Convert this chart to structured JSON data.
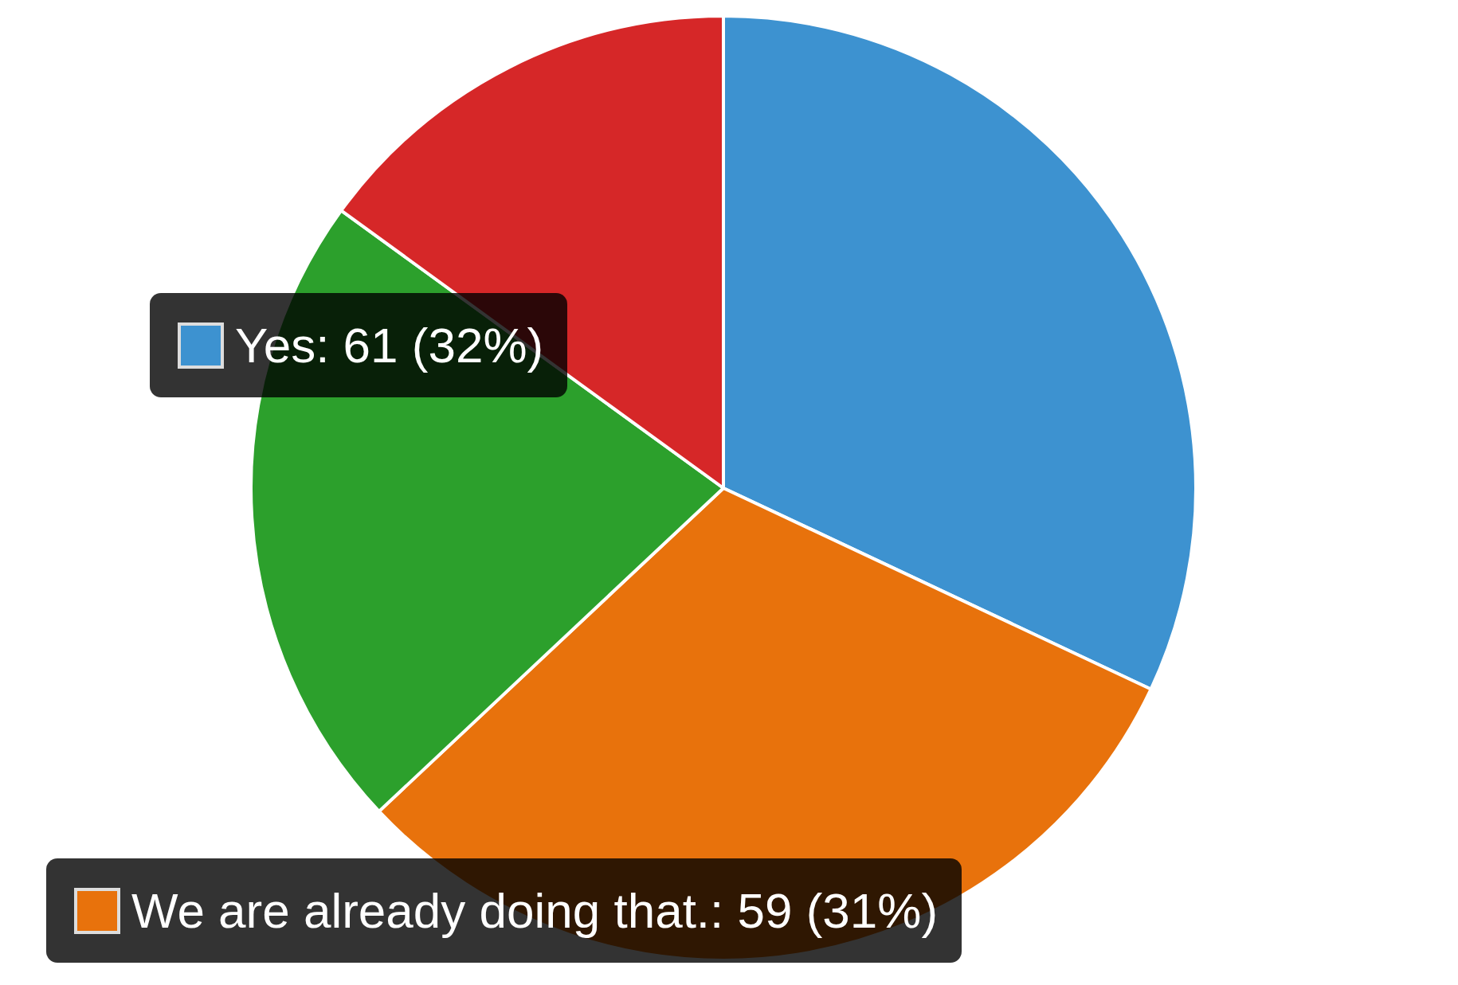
{
  "chart_data": {
    "type": "pie",
    "categories": [
      "Yes",
      "We are already doing that.",
      null,
      null
    ],
    "values": [
      32,
      31,
      22,
      15
    ],
    "value_labels": [
      "61 (32%)",
      "59 (31%)",
      null,
      null
    ],
    "colors": [
      "#3d92d0",
      "#e8720c",
      "#2ca02c",
      "#d62728"
    ],
    "legend": "left"
  }
}
